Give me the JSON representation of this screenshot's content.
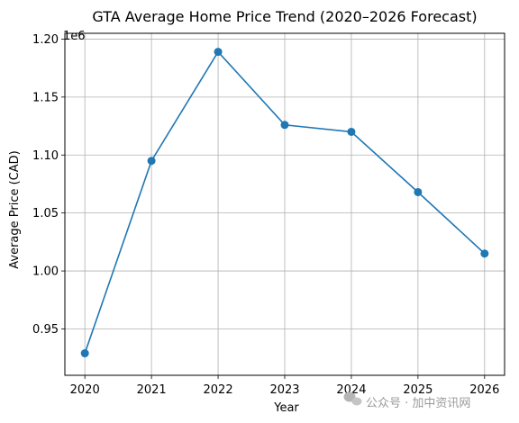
{
  "chart_data": {
    "type": "line",
    "title": "GTA Average Home Price Trend (2020–2026 Forecast)",
    "xlabel": "Year",
    "ylabel": "Average Price (CAD)",
    "offset_text": "1e6",
    "x": [
      2020,
      2021,
      2022,
      2023,
      2024,
      2025,
      2026
    ],
    "x_tick_labels": [
      "2020",
      "2021",
      "2022",
      "2023",
      "2024",
      "2025",
      "2026"
    ],
    "y_ticks": [
      0.95,
      1.0,
      1.05,
      1.1,
      1.15,
      1.2
    ],
    "y_tick_labels": [
      "0.95",
      "1.00",
      "1.05",
      "1.10",
      "1.15",
      "1.20"
    ],
    "ylim": [
      0.91,
      1.205
    ],
    "xlim": [
      2019.7,
      2026.3
    ],
    "grid": true,
    "series": [
      {
        "values": [
          0.929,
          1.095,
          1.189,
          1.126,
          1.12,
          1.068,
          1.015
        ],
        "color": "#1f77b4",
        "marker": "circle"
      }
    ]
  },
  "watermark": {
    "text": "公众号 · 加中资讯网",
    "icon": "wechat-icon"
  }
}
